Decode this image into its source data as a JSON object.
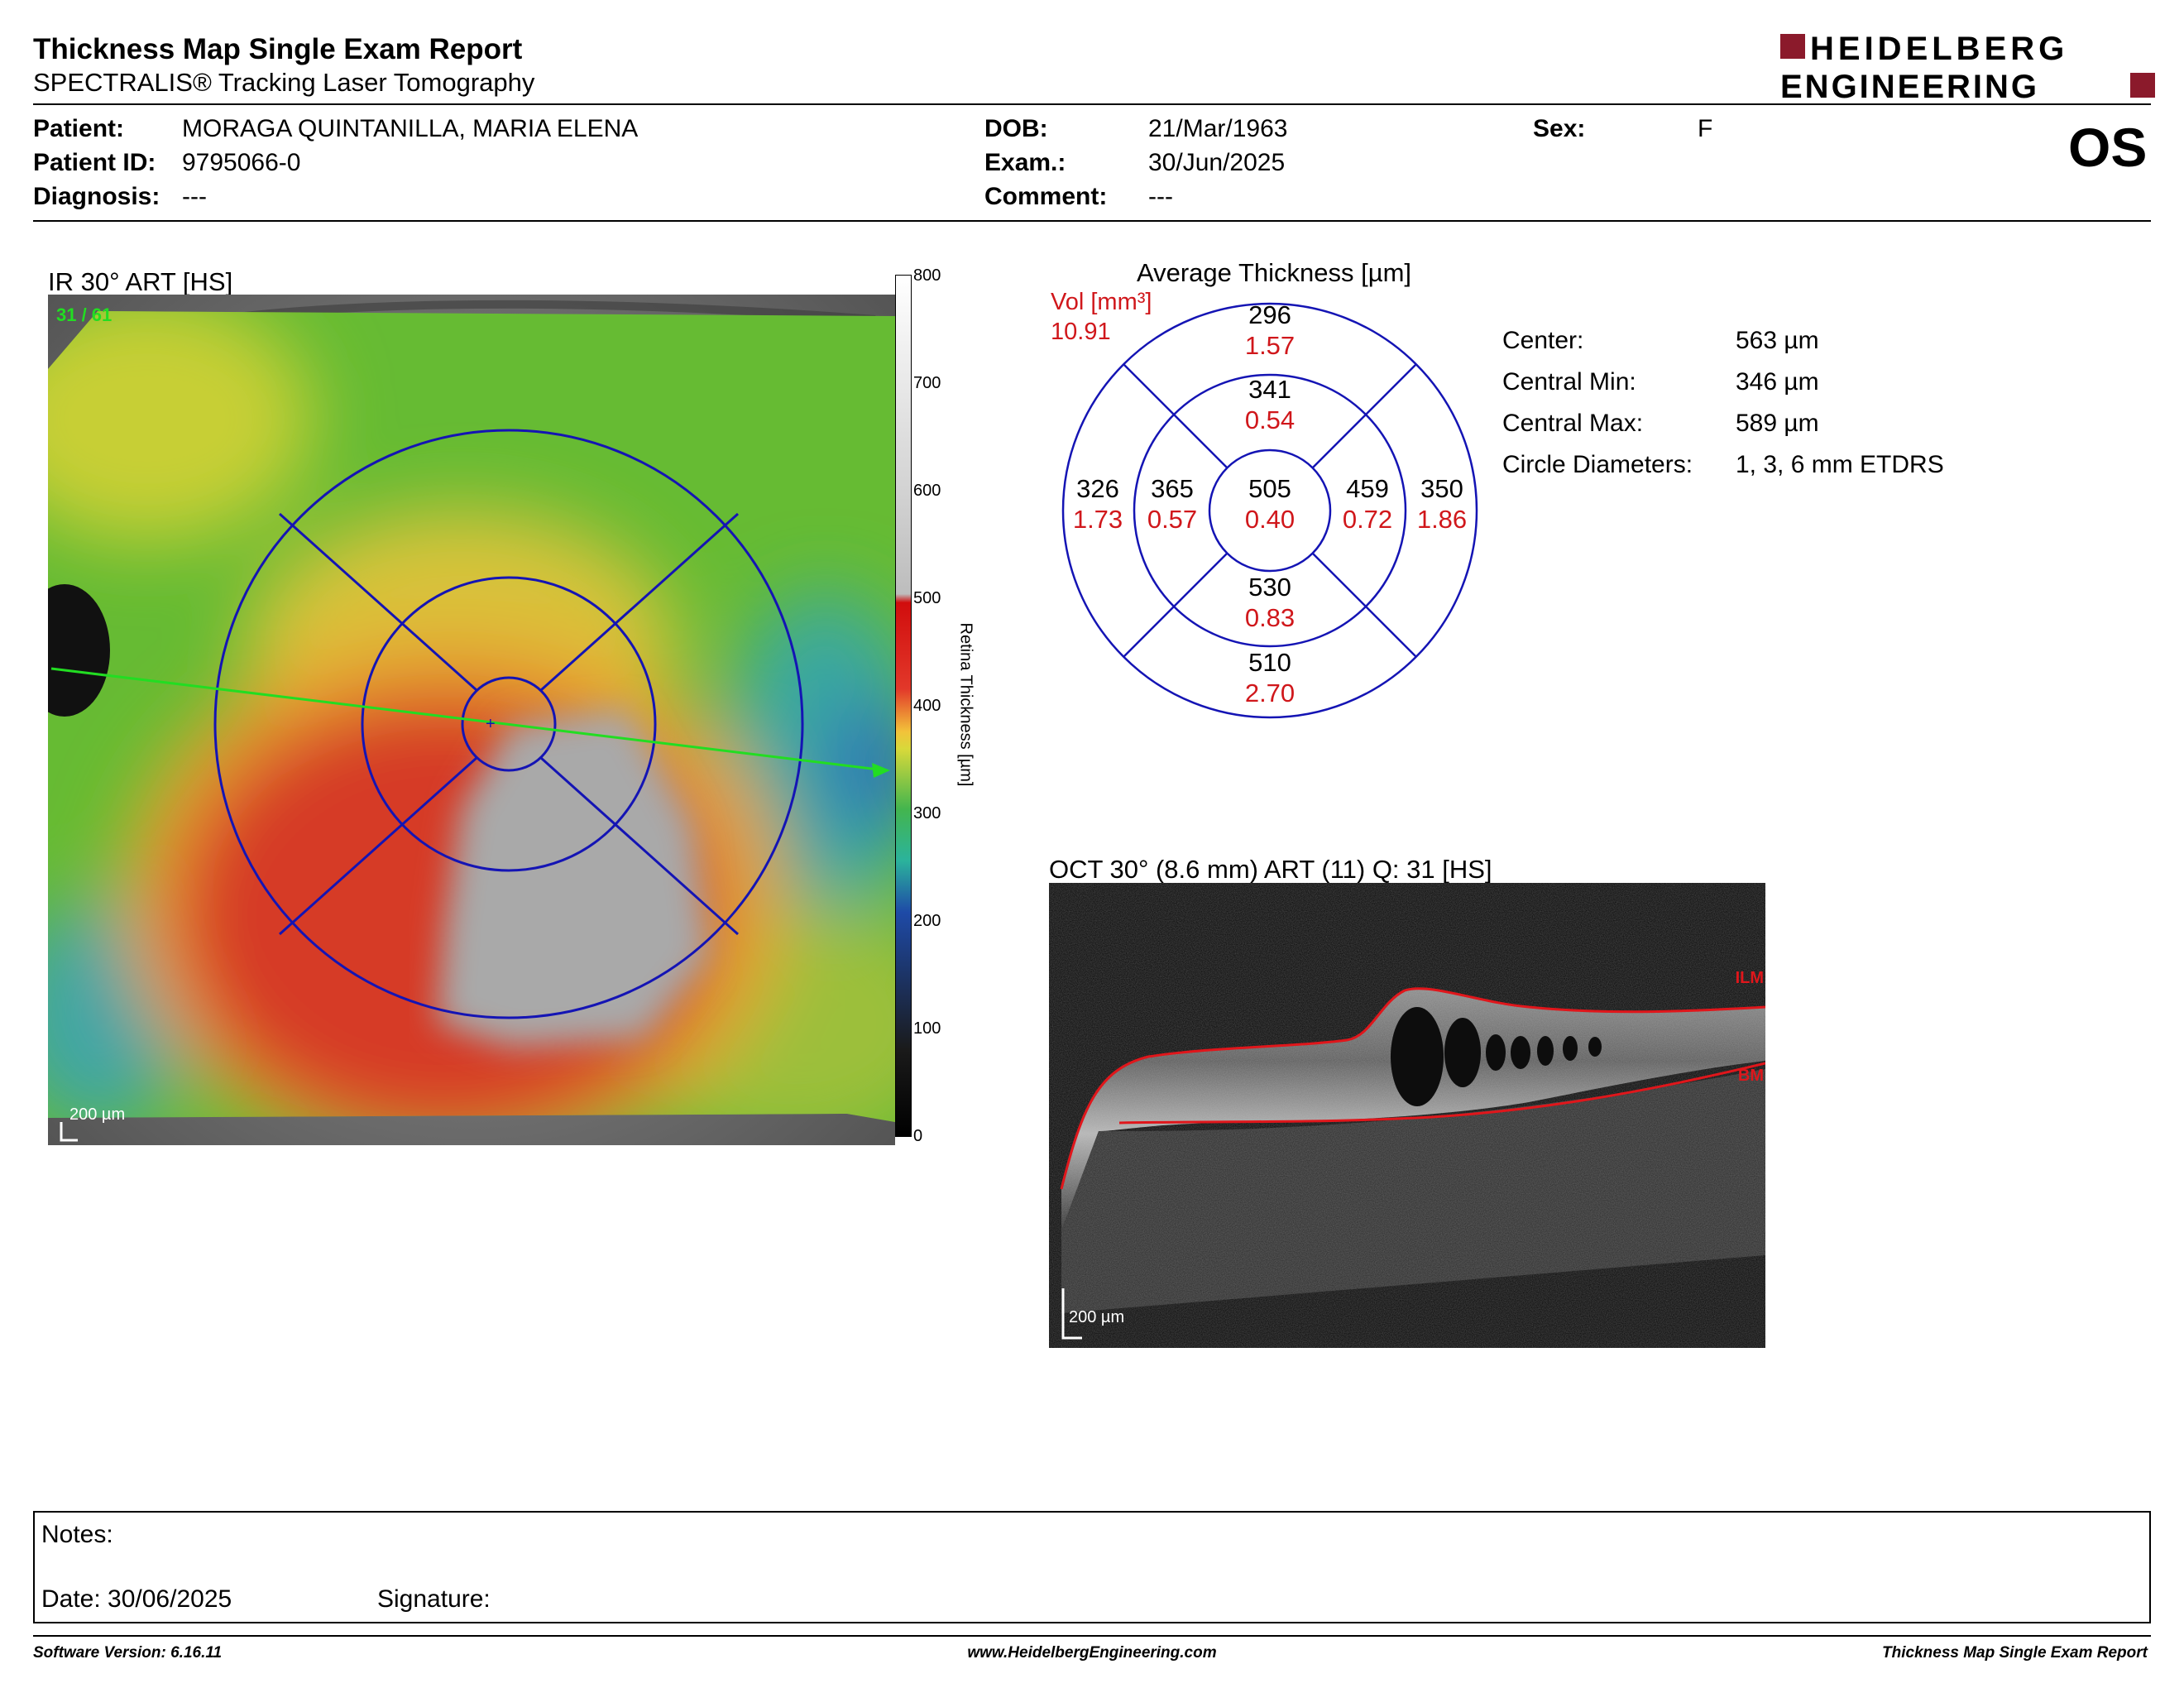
{
  "header": {
    "title": "Thickness Map Single Exam Report",
    "subtitle": "SPECTRALIS® Tracking Laser Tomography",
    "logo_line1": "HEIDELBERG",
    "logo_line2": "ENGINEERING",
    "brand_color": "#8b1a2b"
  },
  "patient": {
    "patient_label": "Patient:",
    "patient_value": "MORAGA QUINTANILLA, MARIA ELENA",
    "id_label": "Patient ID:",
    "id_value": "9795066-0",
    "diagnosis_label": "Diagnosis:",
    "diagnosis_value": "---",
    "dob_label": "DOB:",
    "dob_value": "21/Mar/1963",
    "exam_label": "Exam.:",
    "exam_value": "30/Jun/2025",
    "comment_label": "Comment:",
    "comment_value": "---",
    "sex_label": "Sex:",
    "sex_value": "F",
    "eye": "OS"
  },
  "ir_panel": {
    "title": "IR 30° ART [HS]",
    "quality": "31 / 61",
    "scale_bar": "200 µm",
    "colorbar_label": "Retina Thickness [µm]",
    "colorbar_ticks": [
      "800",
      "700",
      "600",
      "500",
      "400",
      "300",
      "200",
      "100",
      "0"
    ]
  },
  "etdrs": {
    "title": "Average Thickness [µm]",
    "vol_label": "Vol [mm³]",
    "vol_value": "10.91",
    "sectors": {
      "outer_superior": {
        "thickness": "296",
        "volume": "1.57"
      },
      "inner_superior": {
        "thickness": "341",
        "volume": "0.54"
      },
      "outer_temporal": {
        "thickness": "326",
        "volume": "1.73"
      },
      "inner_temporal": {
        "thickness": "365",
        "volume": "0.57"
      },
      "center": {
        "thickness": "505",
        "volume": "0.40"
      },
      "inner_nasal": {
        "thickness": "459",
        "volume": "0.72"
      },
      "outer_nasal": {
        "thickness": "350",
        "volume": "1.86"
      },
      "inner_inferior": {
        "thickness": "530",
        "volume": "0.83"
      },
      "outer_inferior": {
        "thickness": "510",
        "volume": "2.70"
      }
    }
  },
  "stats": {
    "center_label": "Center:",
    "center_value": "563 µm",
    "min_label": "Central Min:",
    "min_value": "346 µm",
    "max_label": "Central Max:",
    "max_value": "589 µm",
    "diam_label": "Circle Diameters:",
    "diam_value": "1, 3, 6 mm ETDRS"
  },
  "oct_panel": {
    "title": "OCT 30° (8.6 mm) ART (11) Q: 31 [HS]",
    "ilm": "ILM",
    "bm": "BM",
    "scale_bar": "200 µm"
  },
  "notes": {
    "notes_label": "Notes:",
    "date_label": "Date: 30/06/2025",
    "signature_label": "Signature:"
  },
  "footer": {
    "software": "Software Version: 6.16.11",
    "website": "www.HeidelbergEngineering.com",
    "report_name": "Thickness Map Single Exam Report"
  }
}
